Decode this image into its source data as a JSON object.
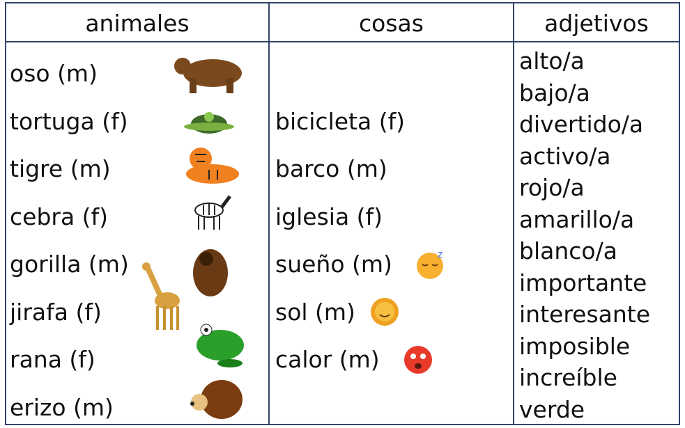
{
  "table": {
    "headers": [
      "animales",
      "cosas",
      "adjetivos"
    ],
    "animales": [
      "oso (m)",
      "tortuga (f)",
      "tigre (m)",
      "cebra (f)",
      "gorilla (m)",
      "jirafa (f)",
      "rana (f)",
      "erizo (m)"
    ],
    "cosas": [
      "bicicleta (f)",
      "barco (m)",
      "iglesia (f)",
      "sueño (m)",
      "sol (m)",
      "calor (m)"
    ],
    "adjetivos": [
      "alto/a",
      "bajo/a",
      "divertido/a",
      "activo/a",
      "rojo/a",
      "amarillo/a",
      "blanco/a",
      "importante",
      "interesante",
      "imposible",
      "increíble",
      "verde"
    ]
  }
}
